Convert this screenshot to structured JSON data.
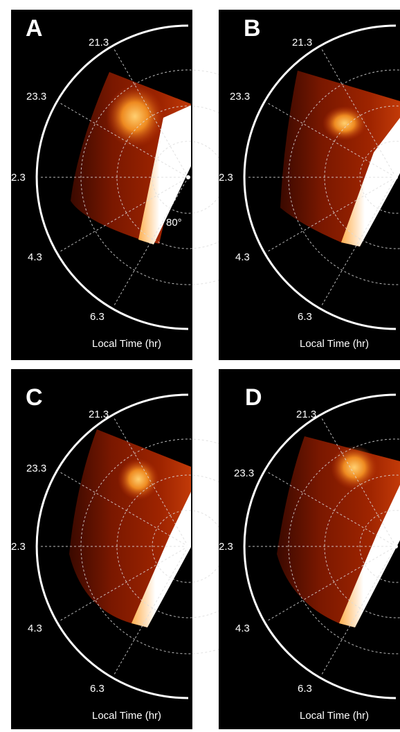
{
  "figure": {
    "axis_label": "Local Time (hr)",
    "latitude_label": "80°",
    "colors": {
      "background": "#000000",
      "grid": "#dcdcdc",
      "rim": "#ffffff"
    },
    "panels": [
      {
        "letter": "A",
        "ticks": [
          "21.3",
          "23.3",
          "2.3",
          "4.3",
          "6.3"
        ]
      },
      {
        "letter": "B",
        "ticks": [
          "21.3",
          "23.3",
          "2.3",
          "4.3",
          "6.3"
        ]
      },
      {
        "letter": "C",
        "ticks": [
          "21.3",
          "23.3",
          "2.3",
          "4.3",
          "6.3"
        ]
      },
      {
        "letter": "D",
        "ticks": [
          "21.3",
          "23.3",
          "2.3",
          "4.3",
          "6.3"
        ]
      }
    ]
  }
}
